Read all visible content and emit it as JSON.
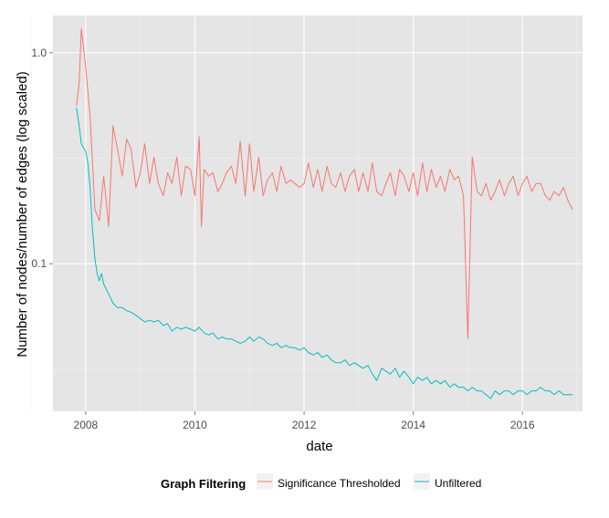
{
  "chart_data": {
    "type": "line",
    "xlabel": "date",
    "ylabel": "Number of nodes/number of edges (log scaled)",
    "x_ticks": [
      "2008",
      "2010",
      "2012",
      "2014",
      "2016"
    ],
    "y_ticks": [
      "0.1",
      "1.0"
    ],
    "y_scale": "log",
    "ylim": [
      0.02,
      1.5
    ],
    "xlim": [
      2007.4,
      2017.1
    ],
    "grid": true,
    "legend": {
      "title": "Graph Filtering",
      "placement": "bottom"
    },
    "series": [
      {
        "name": "Significance Thresholded",
        "color": "#F8766D",
        "points": [
          [
            2007.83,
            0.56
          ],
          [
            2007.88,
            0.72
          ],
          [
            2007.92,
            1.3
          ],
          [
            2008.0,
            0.85
          ],
          [
            2008.08,
            0.5
          ],
          [
            2008.17,
            0.18
          ],
          [
            2008.25,
            0.16
          ],
          [
            2008.33,
            0.26
          ],
          [
            2008.42,
            0.15
          ],
          [
            2008.5,
            0.45
          ],
          [
            2008.58,
            0.35
          ],
          [
            2008.67,
            0.26
          ],
          [
            2008.75,
            0.39
          ],
          [
            2008.83,
            0.35
          ],
          [
            2008.92,
            0.23
          ],
          [
            2009.0,
            0.27
          ],
          [
            2009.08,
            0.37
          ],
          [
            2009.17,
            0.24
          ],
          [
            2009.25,
            0.32
          ],
          [
            2009.33,
            0.24
          ],
          [
            2009.42,
            0.21
          ],
          [
            2009.5,
            0.27
          ],
          [
            2009.58,
            0.24
          ],
          [
            2009.67,
            0.32
          ],
          [
            2009.75,
            0.21
          ],
          [
            2009.83,
            0.29
          ],
          [
            2009.92,
            0.28
          ],
          [
            2010.0,
            0.21
          ],
          [
            2010.08,
            0.4
          ],
          [
            2010.12,
            0.15
          ],
          [
            2010.17,
            0.28
          ],
          [
            2010.25,
            0.26
          ],
          [
            2010.33,
            0.27
          ],
          [
            2010.42,
            0.22
          ],
          [
            2010.5,
            0.24
          ],
          [
            2010.58,
            0.27
          ],
          [
            2010.67,
            0.29
          ],
          [
            2010.75,
            0.24
          ],
          [
            2010.83,
            0.38
          ],
          [
            2010.92,
            0.21
          ],
          [
            2011.0,
            0.37
          ],
          [
            2011.08,
            0.22
          ],
          [
            2011.17,
            0.32
          ],
          [
            2011.25,
            0.21
          ],
          [
            2011.33,
            0.25
          ],
          [
            2011.42,
            0.27
          ],
          [
            2011.5,
            0.22
          ],
          [
            2011.58,
            0.29
          ],
          [
            2011.67,
            0.24
          ],
          [
            2011.75,
            0.25
          ],
          [
            2011.83,
            0.24
          ],
          [
            2011.92,
            0.23
          ],
          [
            2012.0,
            0.24
          ],
          [
            2012.08,
            0.3
          ],
          [
            2012.17,
            0.23
          ],
          [
            2012.25,
            0.28
          ],
          [
            2012.33,
            0.22
          ],
          [
            2012.42,
            0.29
          ],
          [
            2012.5,
            0.24
          ],
          [
            2012.58,
            0.23
          ],
          [
            2012.67,
            0.27
          ],
          [
            2012.75,
            0.22
          ],
          [
            2012.83,
            0.26
          ],
          [
            2012.92,
            0.28
          ],
          [
            2013.0,
            0.22
          ],
          [
            2013.08,
            0.27
          ],
          [
            2013.17,
            0.22
          ],
          [
            2013.25,
            0.3
          ],
          [
            2013.33,
            0.22
          ],
          [
            2013.42,
            0.21
          ],
          [
            2013.5,
            0.24
          ],
          [
            2013.58,
            0.27
          ],
          [
            2013.67,
            0.21
          ],
          [
            2013.75,
            0.28
          ],
          [
            2013.83,
            0.26
          ],
          [
            2013.92,
            0.22
          ],
          [
            2014.0,
            0.27
          ],
          [
            2014.08,
            0.21
          ],
          [
            2014.17,
            0.3
          ],
          [
            2014.25,
            0.22
          ],
          [
            2014.33,
            0.28
          ],
          [
            2014.42,
            0.23
          ],
          [
            2014.5,
            0.26
          ],
          [
            2014.58,
            0.22
          ],
          [
            2014.67,
            0.28
          ],
          [
            2014.75,
            0.25
          ],
          [
            2014.83,
            0.26
          ],
          [
            2014.92,
            0.21
          ],
          [
            2015.0,
            0.044
          ],
          [
            2015.08,
            0.32
          ],
          [
            2015.17,
            0.22
          ],
          [
            2015.25,
            0.21
          ],
          [
            2015.33,
            0.24
          ],
          [
            2015.42,
            0.2
          ],
          [
            2015.5,
            0.22
          ],
          [
            2015.58,
            0.25
          ],
          [
            2015.67,
            0.21
          ],
          [
            2015.75,
            0.24
          ],
          [
            2015.83,
            0.26
          ],
          [
            2015.92,
            0.21
          ],
          [
            2016.0,
            0.24
          ],
          [
            2016.08,
            0.26
          ],
          [
            2016.17,
            0.22
          ],
          [
            2016.25,
            0.24
          ],
          [
            2016.33,
            0.24
          ],
          [
            2016.42,
            0.21
          ],
          [
            2016.5,
            0.2
          ],
          [
            2016.58,
            0.22
          ],
          [
            2016.67,
            0.21
          ],
          [
            2016.75,
            0.23
          ],
          [
            2016.83,
            0.2
          ],
          [
            2016.92,
            0.18
          ]
        ]
      },
      {
        "name": "Unfiltered",
        "color": "#00BFC4",
        "points": [
          [
            2007.83,
            0.55
          ],
          [
            2007.88,
            0.45
          ],
          [
            2007.92,
            0.37
          ],
          [
            2008.0,
            0.34
          ],
          [
            2008.04,
            0.3
          ],
          [
            2008.08,
            0.23
          ],
          [
            2008.12,
            0.15
          ],
          [
            2008.17,
            0.105
          ],
          [
            2008.21,
            0.09
          ],
          [
            2008.25,
            0.083
          ],
          [
            2008.29,
            0.09
          ],
          [
            2008.33,
            0.08
          ],
          [
            2008.42,
            0.072
          ],
          [
            2008.5,
            0.065
          ],
          [
            2008.58,
            0.062
          ],
          [
            2008.67,
            0.062
          ],
          [
            2008.75,
            0.06
          ],
          [
            2008.83,
            0.059
          ],
          [
            2008.92,
            0.057
          ],
          [
            2009.0,
            0.055
          ],
          [
            2009.08,
            0.053
          ],
          [
            2009.17,
            0.054
          ],
          [
            2009.25,
            0.053
          ],
          [
            2009.33,
            0.054
          ],
          [
            2009.42,
            0.051
          ],
          [
            2009.5,
            0.052
          ],
          [
            2009.58,
            0.048
          ],
          [
            2009.67,
            0.05
          ],
          [
            2009.75,
            0.049
          ],
          [
            2009.83,
            0.05
          ],
          [
            2009.92,
            0.049
          ],
          [
            2010.0,
            0.048
          ],
          [
            2010.08,
            0.05
          ],
          [
            2010.17,
            0.047
          ],
          [
            2010.25,
            0.046
          ],
          [
            2010.33,
            0.047
          ],
          [
            2010.42,
            0.044
          ],
          [
            2010.5,
            0.045
          ],
          [
            2010.58,
            0.044
          ],
          [
            2010.67,
            0.044
          ],
          [
            2010.75,
            0.043
          ],
          [
            2010.83,
            0.042
          ],
          [
            2010.92,
            0.043
          ],
          [
            2011.0,
            0.045
          ],
          [
            2011.08,
            0.043
          ],
          [
            2011.17,
            0.045
          ],
          [
            2011.25,
            0.044
          ],
          [
            2011.33,
            0.042
          ],
          [
            2011.42,
            0.041
          ],
          [
            2011.5,
            0.042
          ],
          [
            2011.58,
            0.04
          ],
          [
            2011.67,
            0.041
          ],
          [
            2011.75,
            0.04
          ],
          [
            2011.83,
            0.04
          ],
          [
            2011.92,
            0.039
          ],
          [
            2012.0,
            0.04
          ],
          [
            2012.08,
            0.038
          ],
          [
            2012.17,
            0.037
          ],
          [
            2012.25,
            0.038
          ],
          [
            2012.33,
            0.036
          ],
          [
            2012.42,
            0.037
          ],
          [
            2012.5,
            0.035
          ],
          [
            2012.58,
            0.034
          ],
          [
            2012.67,
            0.034
          ],
          [
            2012.75,
            0.035
          ],
          [
            2012.83,
            0.033
          ],
          [
            2012.92,
            0.034
          ],
          [
            2013.0,
            0.033
          ],
          [
            2013.08,
            0.032
          ],
          [
            2013.17,
            0.033
          ],
          [
            2013.25,
            0.03
          ],
          [
            2013.33,
            0.028
          ],
          [
            2013.42,
            0.032
          ],
          [
            2013.5,
            0.031
          ],
          [
            2013.58,
            0.03
          ],
          [
            2013.67,
            0.032
          ],
          [
            2013.75,
            0.029
          ],
          [
            2013.83,
            0.031
          ],
          [
            2013.92,
            0.029
          ],
          [
            2014.0,
            0.027
          ],
          [
            2014.08,
            0.029
          ],
          [
            2014.17,
            0.028
          ],
          [
            2014.25,
            0.029
          ],
          [
            2014.33,
            0.027
          ],
          [
            2014.42,
            0.028
          ],
          [
            2014.5,
            0.027
          ],
          [
            2014.58,
            0.028
          ],
          [
            2014.67,
            0.026
          ],
          [
            2014.75,
            0.027
          ],
          [
            2014.83,
            0.026
          ],
          [
            2014.92,
            0.026
          ],
          [
            2015.0,
            0.025
          ],
          [
            2015.08,
            0.026
          ],
          [
            2015.17,
            0.025
          ],
          [
            2015.25,
            0.025
          ],
          [
            2015.33,
            0.024
          ],
          [
            2015.42,
            0.023
          ],
          [
            2015.5,
            0.025
          ],
          [
            2015.58,
            0.024
          ],
          [
            2015.67,
            0.025
          ],
          [
            2015.75,
            0.025
          ],
          [
            2015.83,
            0.024
          ],
          [
            2015.92,
            0.025
          ],
          [
            2016.0,
            0.025
          ],
          [
            2016.08,
            0.024
          ],
          [
            2016.17,
            0.025
          ],
          [
            2016.25,
            0.025
          ],
          [
            2016.33,
            0.026
          ],
          [
            2016.42,
            0.025
          ],
          [
            2016.5,
            0.025
          ],
          [
            2016.58,
            0.024
          ],
          [
            2016.67,
            0.025
          ],
          [
            2016.75,
            0.024
          ],
          [
            2016.83,
            0.024
          ],
          [
            2016.92,
            0.024
          ]
        ]
      }
    ]
  }
}
